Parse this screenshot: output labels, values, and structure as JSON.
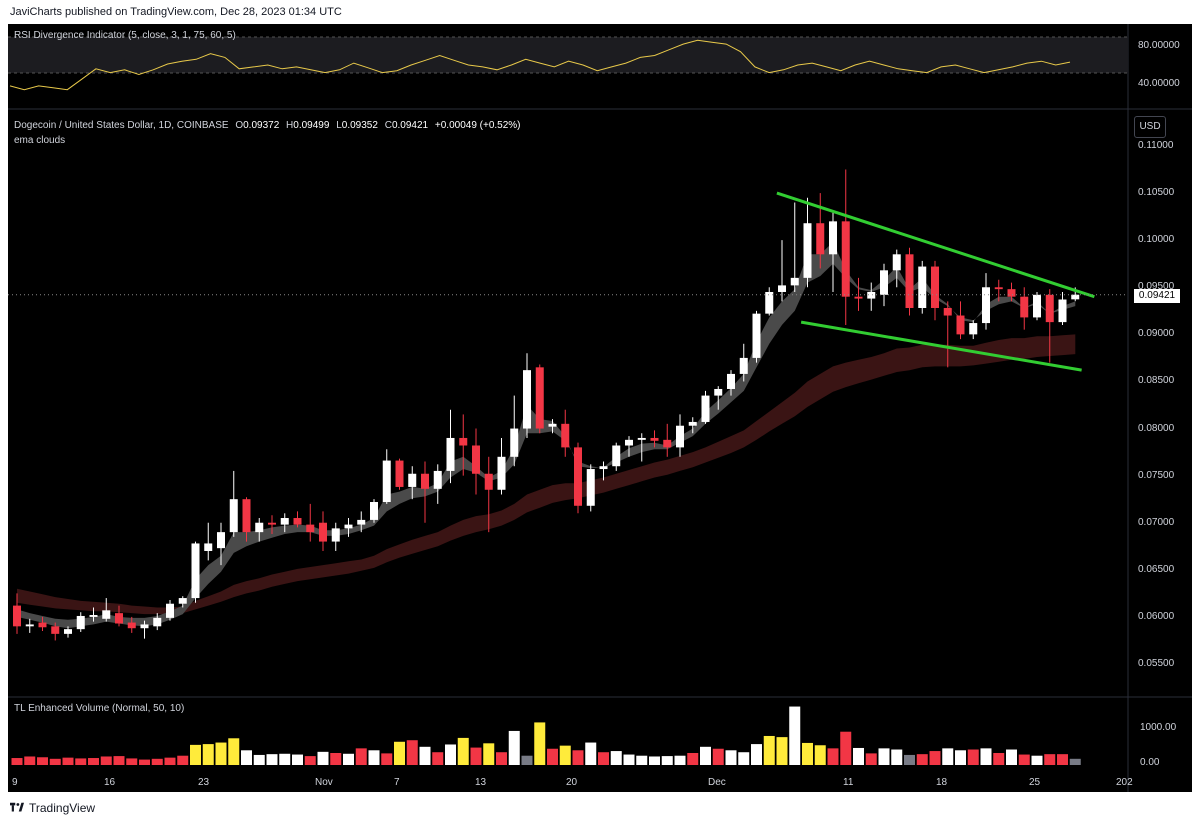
{
  "header": {
    "publish_line": "JaviCharts published on TradingView.com, Dec 28, 2023 01:34 UTC"
  },
  "footer": {
    "brand": "TradingView"
  },
  "rsi_panel": {
    "title": "RSI Divergence Indicator (5, close, 3, 1, 75, 60, 5)",
    "ticks": [
      "80.00000",
      "40.00000"
    ],
    "values": [
      38,
      34,
      38,
      36,
      34,
      45,
      56,
      52,
      55,
      50,
      55,
      61,
      64,
      66,
      72,
      68,
      56,
      58,
      60,
      56,
      58,
      55,
      52,
      55,
      62,
      57,
      52,
      54,
      60,
      65,
      70,
      65,
      60,
      58,
      55,
      60,
      66,
      62,
      58,
      64,
      60,
      54,
      58,
      62,
      68,
      70,
      76,
      82,
      86,
      84,
      82,
      74,
      58,
      52,
      55,
      60,
      62,
      58,
      54,
      60,
      64,
      60,
      56,
      54,
      52,
      58,
      60,
      56,
      52,
      55,
      58,
      62,
      64,
      60,
      63
    ]
  },
  "price_panel": {
    "title": "Dogecoin / United States Dollar, 1D, COINBASE",
    "o_label": "O",
    "o_value": "0.09372",
    "h_label": "H",
    "h_value": "0.09499",
    "l_label": "L",
    "l_value": "0.09352",
    "c_label": "C",
    "c_value": "0.09421",
    "change": "+0.00049 (+0.52%)",
    "subtitle": "ema clouds",
    "currency": "USD",
    "last_price": "0.09421",
    "yticks": [
      "0.11000",
      "0.10500",
      "0.10000",
      "0.09500",
      "0.09000",
      "0.08500",
      "0.08000",
      "0.07500",
      "0.07000",
      "0.06500",
      "0.06000",
      "0.05500"
    ]
  },
  "volume_panel": {
    "title": "TL Enhanced Volume (Normal, 50, 10)",
    "ticks": [
      "1000.00",
      "0.00"
    ]
  },
  "x_axis": {
    "labels": [
      "9",
      "16",
      "23",
      "Nov",
      "7",
      "13",
      "20",
      "Dec",
      "11",
      "18",
      "25",
      "202"
    ]
  },
  "colors": {
    "up": "#ffffff",
    "down": "#f23645",
    "channel": "#32cd32",
    "rsi": "#e8c94a",
    "vol_high": "#ffeb3b",
    "vol_low": "#787b86"
  },
  "chart_data": {
    "type": "candlestick",
    "ylim": [
      0.052,
      0.112
    ],
    "x_start": "2023-10-08",
    "candles": [
      {
        "o": 0.0612,
        "h": 0.0625,
        "l": 0.0582,
        "c": 0.059
      },
      {
        "o": 0.059,
        "h": 0.0598,
        "l": 0.0583,
        "c": 0.0592
      },
      {
        "o": 0.0594,
        "h": 0.06,
        "l": 0.0585,
        "c": 0.0589
      },
      {
        "o": 0.059,
        "h": 0.0594,
        "l": 0.0575,
        "c": 0.0582
      },
      {
        "o": 0.0582,
        "h": 0.059,
        "l": 0.0578,
        "c": 0.0587
      },
      {
        "o": 0.0587,
        "h": 0.0605,
        "l": 0.0584,
        "c": 0.0601
      },
      {
        "o": 0.06,
        "h": 0.061,
        "l": 0.0595,
        "c": 0.0602
      },
      {
        "o": 0.0598,
        "h": 0.062,
        "l": 0.0595,
        "c": 0.0607
      },
      {
        "o": 0.0604,
        "h": 0.0612,
        "l": 0.059,
        "c": 0.0593
      },
      {
        "o": 0.0594,
        "h": 0.06,
        "l": 0.0583,
        "c": 0.0588
      },
      {
        "o": 0.0588,
        "h": 0.0596,
        "l": 0.0577,
        "c": 0.0592
      },
      {
        "o": 0.059,
        "h": 0.0604,
        "l": 0.0586,
        "c": 0.0599
      },
      {
        "o": 0.0599,
        "h": 0.0618,
        "l": 0.0596,
        "c": 0.0614
      },
      {
        "o": 0.0614,
        "h": 0.0622,
        "l": 0.061,
        "c": 0.062
      },
      {
        "o": 0.062,
        "h": 0.068,
        "l": 0.0615,
        "c": 0.0678
      },
      {
        "o": 0.067,
        "h": 0.07,
        "l": 0.066,
        "c": 0.0678
      },
      {
        "o": 0.0673,
        "h": 0.07,
        "l": 0.0655,
        "c": 0.069
      },
      {
        "o": 0.069,
        "h": 0.0755,
        "l": 0.0685,
        "c": 0.0725
      },
      {
        "o": 0.0725,
        "h": 0.0727,
        "l": 0.068,
        "c": 0.069
      },
      {
        "o": 0.069,
        "h": 0.0705,
        "l": 0.068,
        "c": 0.07
      },
      {
        "o": 0.07,
        "h": 0.0708,
        "l": 0.0688,
        "c": 0.0698
      },
      {
        "o": 0.0698,
        "h": 0.071,
        "l": 0.069,
        "c": 0.0705
      },
      {
        "o": 0.0705,
        "h": 0.0712,
        "l": 0.0695,
        "c": 0.0698
      },
      {
        "o": 0.0698,
        "h": 0.072,
        "l": 0.068,
        "c": 0.069
      },
      {
        "o": 0.07,
        "h": 0.0712,
        "l": 0.067,
        "c": 0.068
      },
      {
        "o": 0.068,
        "h": 0.07,
        "l": 0.067,
        "c": 0.0694
      },
      {
        "o": 0.0694,
        "h": 0.0705,
        "l": 0.0685,
        "c": 0.0698
      },
      {
        "o": 0.0698,
        "h": 0.0712,
        "l": 0.069,
        "c": 0.0703
      },
      {
        "o": 0.0703,
        "h": 0.0725,
        "l": 0.07,
        "c": 0.0722
      },
      {
        "o": 0.0722,
        "h": 0.0778,
        "l": 0.072,
        "c": 0.0766
      },
      {
        "o": 0.0766,
        "h": 0.0768,
        "l": 0.0735,
        "c": 0.0738
      },
      {
        "o": 0.0738,
        "h": 0.076,
        "l": 0.0725,
        "c": 0.0752
      },
      {
        "o": 0.0752,
        "h": 0.0765,
        "l": 0.07,
        "c": 0.0736
      },
      {
        "o": 0.0736,
        "h": 0.0762,
        "l": 0.072,
        "c": 0.0755
      },
      {
        "o": 0.0755,
        "h": 0.082,
        "l": 0.0742,
        "c": 0.079
      },
      {
        "o": 0.079,
        "h": 0.0815,
        "l": 0.075,
        "c": 0.0782
      },
      {
        "o": 0.0782,
        "h": 0.08,
        "l": 0.073,
        "c": 0.0752
      },
      {
        "o": 0.0752,
        "h": 0.077,
        "l": 0.069,
        "c": 0.0735
      },
      {
        "o": 0.0735,
        "h": 0.079,
        "l": 0.073,
        "c": 0.077
      },
      {
        "o": 0.077,
        "h": 0.0835,
        "l": 0.076,
        "c": 0.08
      },
      {
        "o": 0.08,
        "h": 0.088,
        "l": 0.079,
        "c": 0.0862
      },
      {
        "o": 0.0865,
        "h": 0.0868,
        "l": 0.0795,
        "c": 0.08
      },
      {
        "o": 0.0802,
        "h": 0.081,
        "l": 0.0795,
        "c": 0.0805
      },
      {
        "o": 0.0805,
        "h": 0.082,
        "l": 0.077,
        "c": 0.078
      },
      {
        "o": 0.078,
        "h": 0.0785,
        "l": 0.071,
        "c": 0.0718
      },
      {
        "o": 0.0718,
        "h": 0.0762,
        "l": 0.0712,
        "c": 0.0757
      },
      {
        "o": 0.0757,
        "h": 0.0765,
        "l": 0.0745,
        "c": 0.076
      },
      {
        "o": 0.076,
        "h": 0.0785,
        "l": 0.0755,
        "c": 0.0782
      },
      {
        "o": 0.0782,
        "h": 0.0792,
        "l": 0.077,
        "c": 0.0788
      },
      {
        "o": 0.0788,
        "h": 0.0795,
        "l": 0.0765,
        "c": 0.079
      },
      {
        "o": 0.079,
        "h": 0.0798,
        "l": 0.078,
        "c": 0.0787
      },
      {
        "o": 0.0788,
        "h": 0.0805,
        "l": 0.077,
        "c": 0.078
      },
      {
        "o": 0.078,
        "h": 0.0815,
        "l": 0.077,
        "c": 0.0803
      },
      {
        "o": 0.0803,
        "h": 0.0812,
        "l": 0.0795,
        "c": 0.0807
      },
      {
        "o": 0.0807,
        "h": 0.084,
        "l": 0.0805,
        "c": 0.0835
      },
      {
        "o": 0.0835,
        "h": 0.0845,
        "l": 0.082,
        "c": 0.0842
      },
      {
        "o": 0.0842,
        "h": 0.0862,
        "l": 0.0835,
        "c": 0.0858
      },
      {
        "o": 0.0858,
        "h": 0.089,
        "l": 0.085,
        "c": 0.0875
      },
      {
        "o": 0.0875,
        "h": 0.0925,
        "l": 0.087,
        "c": 0.0922
      },
      {
        "o": 0.0922,
        "h": 0.095,
        "l": 0.092,
        "c": 0.0945
      },
      {
        "o": 0.0945,
        "h": 0.1,
        "l": 0.0935,
        "c": 0.0952
      },
      {
        "o": 0.0952,
        "h": 0.104,
        "l": 0.0945,
        "c": 0.096
      },
      {
        "o": 0.096,
        "h": 0.1045,
        "l": 0.095,
        "c": 0.1018
      },
      {
        "o": 0.1018,
        "h": 0.105,
        "l": 0.097,
        "c": 0.0985
      },
      {
        "o": 0.0985,
        "h": 0.103,
        "l": 0.0945,
        "c": 0.102
      },
      {
        "o": 0.102,
        "h": 0.1075,
        "l": 0.091,
        "c": 0.094
      },
      {
        "o": 0.094,
        "h": 0.096,
        "l": 0.0925,
        "c": 0.0938
      },
      {
        "o": 0.0938,
        "h": 0.0955,
        "l": 0.0925,
        "c": 0.0945
      },
      {
        "o": 0.0942,
        "h": 0.0975,
        "l": 0.093,
        "c": 0.0968
      },
      {
        "o": 0.0968,
        "h": 0.099,
        "l": 0.095,
        "c": 0.0985
      },
      {
        "o": 0.0985,
        "h": 0.0992,
        "l": 0.092,
        "c": 0.0928
      },
      {
        "o": 0.0928,
        "h": 0.0978,
        "l": 0.0922,
        "c": 0.0972
      },
      {
        "o": 0.0972,
        "h": 0.0978,
        "l": 0.0915,
        "c": 0.0928
      },
      {
        "o": 0.0928,
        "h": 0.0935,
        "l": 0.0865,
        "c": 0.092
      },
      {
        "o": 0.092,
        "h": 0.0935,
        "l": 0.0895,
        "c": 0.09
      },
      {
        "o": 0.09,
        "h": 0.0915,
        "l": 0.0895,
        "c": 0.0912
      },
      {
        "o": 0.0912,
        "h": 0.0965,
        "l": 0.0905,
        "c": 0.095
      },
      {
        "o": 0.095,
        "h": 0.0958,
        "l": 0.0935,
        "c": 0.0948
      },
      {
        "o": 0.0948,
        "h": 0.0955,
        "l": 0.0935,
        "c": 0.094
      },
      {
        "o": 0.094,
        "h": 0.095,
        "l": 0.0905,
        "c": 0.0918
      },
      {
        "o": 0.0918,
        "h": 0.0945,
        "l": 0.0915,
        "c": 0.0942
      },
      {
        "o": 0.0942,
        "h": 0.0948,
        "l": 0.087,
        "c": 0.0913
      },
      {
        "o": 0.0913,
        "h": 0.0945,
        "l": 0.091,
        "c": 0.0937
      },
      {
        "o": 0.09372,
        "h": 0.09499,
        "l": 0.09352,
        "c": 0.09421
      }
    ],
    "ema_fast_upper": [
      0.0608,
      0.0604,
      0.0601,
      0.0598,
      0.0597,
      0.0598,
      0.06,
      0.0603,
      0.06,
      0.0599,
      0.0599,
      0.0601,
      0.0606,
      0.0612,
      0.064,
      0.0655,
      0.0665,
      0.069,
      0.069,
      0.0692,
      0.0695,
      0.0697,
      0.0698,
      0.0697,
      0.0692,
      0.0692,
      0.0694,
      0.0698,
      0.0705,
      0.073,
      0.0733,
      0.0738,
      0.0736,
      0.0742,
      0.0765,
      0.077,
      0.076,
      0.0748,
      0.0755,
      0.078,
      0.0825,
      0.081,
      0.0808,
      0.0792,
      0.076,
      0.0758,
      0.0759,
      0.077,
      0.0779,
      0.0784,
      0.0785,
      0.0782,
      0.0792,
      0.08,
      0.0818,
      0.083,
      0.0843,
      0.0858,
      0.0892,
      0.0918,
      0.0935,
      0.0948,
      0.0985,
      0.0985,
      0.0998,
      0.0968,
      0.095,
      0.0947,
      0.0958,
      0.0972,
      0.0948,
      0.096,
      0.0942,
      0.0932,
      0.0915,
      0.0913,
      0.0932,
      0.094,
      0.094,
      0.0928,
      0.0935,
      0.0922,
      0.093,
      0.0935
    ],
    "ema_fast_lower": [
      0.06,
      0.0597,
      0.0594,
      0.059,
      0.0588,
      0.059,
      0.0592,
      0.0595,
      0.0593,
      0.0591,
      0.059,
      0.0592,
      0.0597,
      0.0603,
      0.062,
      0.0635,
      0.0648,
      0.0668,
      0.0675,
      0.068,
      0.0684,
      0.0688,
      0.069,
      0.069,
      0.0686,
      0.0686,
      0.0688,
      0.0692,
      0.0697,
      0.0712,
      0.072,
      0.0726,
      0.0728,
      0.0733,
      0.0748,
      0.0757,
      0.0753,
      0.0744,
      0.0748,
      0.0762,
      0.0795,
      0.0795,
      0.0797,
      0.0787,
      0.0765,
      0.076,
      0.0758,
      0.0764,
      0.077,
      0.0775,
      0.0778,
      0.0778,
      0.0785,
      0.0792,
      0.0805,
      0.0816,
      0.0828,
      0.084,
      0.0865,
      0.089,
      0.091,
      0.0925,
      0.0955,
      0.0962,
      0.0975,
      0.096,
      0.0948,
      0.0945,
      0.095,
      0.096,
      0.0945,
      0.095,
      0.0938,
      0.093,
      0.0918,
      0.0915,
      0.0925,
      0.0932,
      0.0935,
      0.0928,
      0.0932,
      0.0922,
      0.0926,
      0.093
    ],
    "ema_slow_upper": [
      0.063,
      0.0627,
      0.0624,
      0.0621,
      0.0619,
      0.0617,
      0.0616,
      0.0615,
      0.0614,
      0.0612,
      0.0611,
      0.061,
      0.061,
      0.0611,
      0.0617,
      0.0622,
      0.0627,
      0.0634,
      0.0638,
      0.0641,
      0.0645,
      0.0648,
      0.0651,
      0.0653,
      0.0655,
      0.0657,
      0.0659,
      0.0661,
      0.0665,
      0.0672,
      0.0677,
      0.0682,
      0.0686,
      0.069,
      0.0697,
      0.0703,
      0.0707,
      0.0709,
      0.0713,
      0.072,
      0.073,
      0.0735,
      0.074,
      0.0742,
      0.0742,
      0.0745,
      0.0748,
      0.0752,
      0.0756,
      0.076,
      0.0764,
      0.0767,
      0.0771,
      0.0775,
      0.078,
      0.0786,
      0.0792,
      0.0798,
      0.0808,
      0.0818,
      0.0828,
      0.0838,
      0.085,
      0.0858,
      0.0866,
      0.087,
      0.0873,
      0.0876,
      0.088,
      0.0885,
      0.0886,
      0.0889,
      0.0889,
      0.0889,
      0.0888,
      0.0888,
      0.0891,
      0.0894,
      0.0896,
      0.0896,
      0.0898,
      0.0898,
      0.0899,
      0.09
    ],
    "ema_slow_lower": [
      0.0615,
      0.0613,
      0.0611,
      0.0609,
      0.0608,
      0.0607,
      0.0606,
      0.0606,
      0.0605,
      0.0604,
      0.0603,
      0.0603,
      0.0603,
      0.0604,
      0.0608,
      0.0612,
      0.0616,
      0.0621,
      0.0625,
      0.0628,
      0.0632,
      0.0635,
      0.0638,
      0.064,
      0.0642,
      0.0644,
      0.0646,
      0.0649,
      0.0652,
      0.0658,
      0.0663,
      0.0667,
      0.0671,
      0.0675,
      0.0681,
      0.0686,
      0.069,
      0.0693,
      0.0697,
      0.0703,
      0.0711,
      0.0716,
      0.0721,
      0.0724,
      0.0726,
      0.0729,
      0.0732,
      0.0736,
      0.074,
      0.0744,
      0.0748,
      0.0751,
      0.0755,
      0.0759,
      0.0764,
      0.0769,
      0.0774,
      0.078,
      0.0788,
      0.0797,
      0.0805,
      0.0813,
      0.0823,
      0.0831,
      0.0839,
      0.0844,
      0.0848,
      0.0852,
      0.0856,
      0.086,
      0.0862,
      0.0865,
      0.0866,
      0.0866,
      0.0866,
      0.0867,
      0.0869,
      0.0871,
      0.0873,
      0.0874,
      0.0876,
      0.0877,
      0.0878,
      0.0879
    ],
    "channel_upper": [
      {
        "i": 59.6,
        "p": 0.105
      },
      {
        "i": 84.5,
        "p": 0.094
      }
    ],
    "channel_lower": [
      {
        "i": 61.5,
        "p": 0.0913
      },
      {
        "i": 83.5,
        "p": 0.0862
      }
    ],
    "volume": {
      "ylim": [
        0,
        1550
      ],
      "values": [
        180,
        220,
        200,
        160,
        190,
        170,
        180,
        220,
        230,
        170,
        140,
        160,
        190,
        240,
        520,
        540,
        580,
        690,
        380,
        260,
        280,
        290,
        270,
        230,
        340,
        310,
        290,
        430,
        380,
        300,
        600,
        640,
        470,
        330,
        530,
        700,
        450,
        560,
        330,
        880,
        240,
        1100,
        420,
        500,
        380,
        580,
        330,
        360,
        270,
        240,
        220,
        230,
        240,
        310,
        470,
        420,
        380,
        330,
        540,
        750,
        720,
        1510,
        570,
        510,
        430,
        860,
        440,
        300,
        430,
        400,
        260,
        280,
        360,
        430,
        380,
        400,
        430,
        310,
        400,
        270,
        240,
        280,
        280,
        160
      ],
      "colors": [
        "r",
        "r",
        "r",
        "r",
        "r",
        "r",
        "r",
        "r",
        "r",
        "r",
        "r",
        "r",
        "r",
        "r",
        "y",
        "y",
        "y",
        "y",
        "w",
        "w",
        "w",
        "w",
        "w",
        "r",
        "w",
        "r",
        "w",
        "r",
        "w",
        "r",
        "y",
        "r",
        "w",
        "r",
        "w",
        "y",
        "r",
        "y",
        "r",
        "w",
        "g",
        "y",
        "r",
        "y",
        "r",
        "w",
        "r",
        "w",
        "w",
        "w",
        "w",
        "w",
        "w",
        "r",
        "w",
        "r",
        "w",
        "w",
        "w",
        "y",
        "y",
        "w",
        "y",
        "y",
        "r",
        "r",
        "w",
        "r",
        "w",
        "w",
        "g",
        "r",
        "r",
        "w",
        "w",
        "r",
        "w",
        "r",
        "w",
        "r",
        "w",
        "r",
        "r",
        "g"
      ]
    }
  }
}
